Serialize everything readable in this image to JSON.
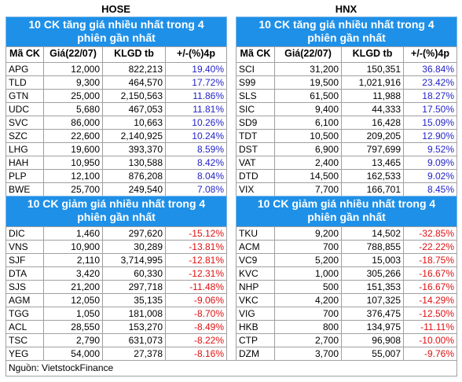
{
  "hose": {
    "title": "HOSE",
    "gainers": {
      "title": "10 CK tăng giá nhiều nhất trong 4 phiên gần nhất",
      "header": [
        "Mã CK",
        "Giá(22/07)",
        "KLGD tb",
        "+/-(%)4p"
      ],
      "rows": [
        [
          "APG",
          "12,000",
          "822,213",
          "19.40%"
        ],
        [
          "TLD",
          "9,300",
          "464,570",
          "17.72%"
        ],
        [
          "GTN",
          "25,000",
          "2,150,563",
          "11.86%"
        ],
        [
          "UDC",
          "5,680",
          "467,053",
          "11.81%"
        ],
        [
          "SVC",
          "86,000",
          "10,663",
          "10.26%"
        ],
        [
          "SZC",
          "22,600",
          "2,140,925",
          "10.24%"
        ],
        [
          "LHG",
          "19,600",
          "393,370",
          "8.59%"
        ],
        [
          "HAH",
          "10,950",
          "130,588",
          "8.42%"
        ],
        [
          "PLP",
          "12,100",
          "876,208",
          "8.04%"
        ],
        [
          "BWE",
          "25,700",
          "249,540",
          "7.08%"
        ]
      ]
    },
    "losers": {
      "title": "10 CK giảm giá nhiều nhất trong 4 phiên gần nhất",
      "rows": [
        [
          "DIC",
          "1,460",
          "297,620",
          "-15.12%"
        ],
        [
          "VNS",
          "10,900",
          "30,289",
          "-13.81%"
        ],
        [
          "SJF",
          "2,110",
          "3,714,995",
          "-12.81%"
        ],
        [
          "DTA",
          "3,420",
          "60,330",
          "-12.31%"
        ],
        [
          "SJS",
          "21,200",
          "297,718",
          "-11.48%"
        ],
        [
          "AGM",
          "12,050",
          "35,135",
          "-9.06%"
        ],
        [
          "TGG",
          "1,050",
          "181,008",
          "-8.70%"
        ],
        [
          "ACL",
          "28,550",
          "153,270",
          "-8.49%"
        ],
        [
          "TSC",
          "2,790",
          "631,073",
          "-8.22%"
        ],
        [
          "YEG",
          "54,000",
          "27,378",
          "-8.16%"
        ]
      ]
    }
  },
  "hnx": {
    "title": "HNX",
    "gainers": {
      "title": "10 CK tăng giá nhiều nhất trong 4 phiên gần nhất",
      "header": [
        "Mã CK",
        "Giá(22/07)",
        "KLGD tb",
        "+/-(%)4p"
      ],
      "rows": [
        [
          "SCI",
          "31,200",
          "150,351",
          "36.84%"
        ],
        [
          "S99",
          "19,500",
          "1,021,916",
          "23.42%"
        ],
        [
          "SLS",
          "61,500",
          "11,988",
          "18.27%"
        ],
        [
          "SIC",
          "9,400",
          "44,333",
          "17.50%"
        ],
        [
          "SD9",
          "6,100",
          "16,428",
          "15.09%"
        ],
        [
          "TDT",
          "10,500",
          "209,205",
          "12.90%"
        ],
        [
          "DST",
          "6,900",
          "797,699",
          "9.52%"
        ],
        [
          "VAT",
          "2,400",
          "13,465",
          "9.09%"
        ],
        [
          "DTD",
          "14,500",
          "162,533",
          "9.02%"
        ],
        [
          "VIX",
          "7,700",
          "166,701",
          "8.45%"
        ]
      ]
    },
    "losers": {
      "title": "10 CK giảm giá nhiều nhất trong 4 phiên gần nhất",
      "rows": [
        [
          "TKU",
          "9,200",
          "14,502",
          "-32.85%"
        ],
        [
          "ACM",
          "700",
          "788,855",
          "-22.22%"
        ],
        [
          "VC9",
          "5,200",
          "15,003",
          "-18.75%"
        ],
        [
          "KVC",
          "1,000",
          "305,266",
          "-16.67%"
        ],
        [
          "NHP",
          "500",
          "151,353",
          "-16.67%"
        ],
        [
          "VKC",
          "4,200",
          "107,325",
          "-14.29%"
        ],
        [
          "VIG",
          "700",
          "376,475",
          "-12.50%"
        ],
        [
          "HKB",
          "800",
          "134,975",
          "-11.11%"
        ],
        [
          "CTP",
          "2,700",
          "96,908",
          "-10.00%"
        ],
        [
          "DZM",
          "3,700",
          "55,007",
          "-9.76%"
        ]
      ]
    }
  },
  "source": "Nguồn: VietstockFinance"
}
